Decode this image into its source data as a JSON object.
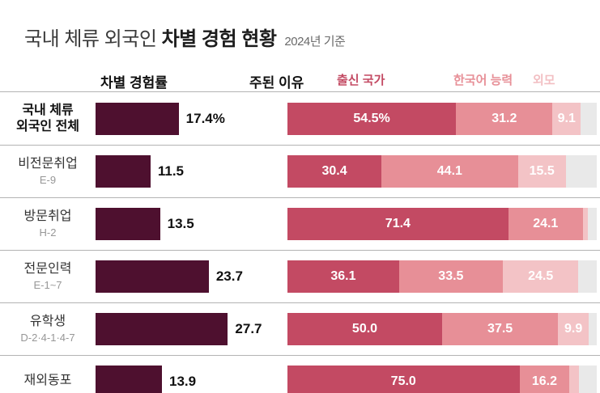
{
  "header": {
    "title_regular": "국내 체류 외국인 ",
    "title_bold": "차별 경험 현황",
    "title_note": "2024년 기준",
    "col_left": "차별 경험률",
    "col_right": "주된 이유",
    "legend": [
      {
        "label": "출신 국가",
        "color": "#c34a63"
      },
      {
        "label": "한국어 능력",
        "color": "#e78f97"
      },
      {
        "label": "외모",
        "color": "#f2bfc3"
      }
    ]
  },
  "colors": {
    "rate_bar": "#4e102f",
    "seg0": "#c34a63",
    "seg1": "#e78f97",
    "seg2": "#f3c3c6",
    "track": "#e9e9e9"
  },
  "rows": [
    {
      "label": "국내 체류",
      "sublabel": "외국인 전체",
      "rate": 17.4,
      "rate_label": "17.4%",
      "segments": [
        {
          "value": 54.5,
          "label": "54.5%"
        },
        {
          "value": 31.2,
          "label": "31.2"
        },
        {
          "value": 9.1,
          "label": "9.1"
        }
      ]
    },
    {
      "label": "비전문취업",
      "sublabel": "E-9",
      "rate": 11.5,
      "rate_label": "11.5",
      "segments": [
        {
          "value": 30.4,
          "label": "30.4"
        },
        {
          "value": 44.1,
          "label": "44.1"
        },
        {
          "value": 15.5,
          "label": "15.5"
        }
      ]
    },
    {
      "label": "방문취업",
      "sublabel": "H-2",
      "rate": 13.5,
      "rate_label": "13.5",
      "segments": [
        {
          "value": 71.4,
          "label": "71.4"
        },
        {
          "value": 24.1,
          "label": "24.1"
        },
        {
          "value": 1.5,
          "label": ""
        }
      ]
    },
    {
      "label": "전문인력",
      "sublabel": "E-1~7",
      "rate": 23.7,
      "rate_label": "23.7",
      "segments": [
        {
          "value": 36.1,
          "label": "36.1"
        },
        {
          "value": 33.5,
          "label": "33.5"
        },
        {
          "value": 24.5,
          "label": "24.5"
        }
      ]
    },
    {
      "label": "유학생",
      "sublabel": "D-2·4-1·4-7",
      "rate": 27.7,
      "rate_label": "27.7",
      "segments": [
        {
          "value": 50.0,
          "label": "50.0"
        },
        {
          "value": 37.5,
          "label": "37.5"
        },
        {
          "value": 9.9,
          "label": "9.9"
        }
      ]
    },
    {
      "label": "재외동포",
      "sublabel": "",
      "rate": 13.9,
      "rate_label": "13.9",
      "segments": [
        {
          "value": 75.0,
          "label": "75.0"
        },
        {
          "value": 16.2,
          "label": "16.2"
        },
        {
          "value": 3.0,
          "label": ""
        }
      ]
    }
  ],
  "chart_data": {
    "type": "bar",
    "title": "국내 체류 외국인 차별 경험 현황",
    "subtitle": "2024년 기준",
    "unit": "%",
    "legend_position": "top",
    "categories": [
      "국내 체류 외국인 전체",
      "비전문취업 E-9",
      "방문취업 H-2",
      "전문인력 E-1~7",
      "유학생 D-2·4-1·4-7",
      "재외동포"
    ],
    "series": [
      {
        "name": "차별 경험률",
        "chart": "bar",
        "values": [
          17.4,
          11.5,
          13.5,
          23.7,
          27.7,
          13.9
        ]
      },
      {
        "name": "출신 국가",
        "chart": "stacked-bar",
        "values": [
          54.5,
          30.4,
          71.4,
          36.1,
          50.0,
          75.0
        ]
      },
      {
        "name": "한국어 능력",
        "chart": "stacked-bar",
        "values": [
          31.2,
          44.1,
          24.1,
          33.5,
          37.5,
          16.2
        ]
      },
      {
        "name": "외모",
        "chart": "stacked-bar",
        "values": [
          9.1,
          15.5,
          1.5,
          24.5,
          9.9,
          3.0
        ]
      }
    ],
    "xlim_stacked": [
      0,
      100
    ]
  }
}
